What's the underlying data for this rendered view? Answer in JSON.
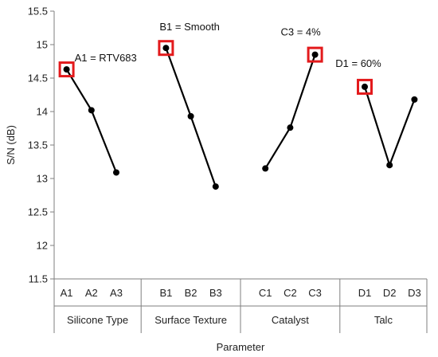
{
  "chart_data": {
    "type": "line",
    "title": "",
    "xlabel": "Parameter",
    "ylabel": "S/N (dB)",
    "ylim": [
      11.5,
      15.5
    ],
    "yticks": [
      "11.5",
      "12",
      "12.5",
      "13",
      "13.5",
      "14",
      "14.5",
      "15",
      "15.5"
    ],
    "grid": false,
    "groups": [
      {
        "name": "Silicone Type",
        "levels": [
          "A1",
          "A2",
          "A3"
        ],
        "values": [
          14.63,
          14.02,
          13.09
        ],
        "optimal_index": 0,
        "annotation": "A1 = RTV683"
      },
      {
        "name": "Surface Texture",
        "levels": [
          "B1",
          "B2",
          "B3"
        ],
        "values": [
          14.95,
          13.93,
          12.88
        ],
        "optimal_index": 0,
        "annotation": "B1 = Smooth"
      },
      {
        "name": "Catalyst",
        "levels": [
          "C1",
          "C2",
          "C3"
        ],
        "values": [
          13.15,
          13.76,
          14.85
        ],
        "optimal_index": 2,
        "annotation": "C3 = 4%"
      },
      {
        "name": "Talc",
        "levels": [
          "D1",
          "D2",
          "D3"
        ],
        "values": [
          14.37,
          13.2,
          14.18
        ],
        "optimal_index": 0,
        "annotation": "D1 = 60%"
      }
    ],
    "colors": {
      "line": "#000000",
      "marker": "#000000",
      "highlight": "#e31a1c",
      "axis": "#7f7f7f"
    }
  }
}
